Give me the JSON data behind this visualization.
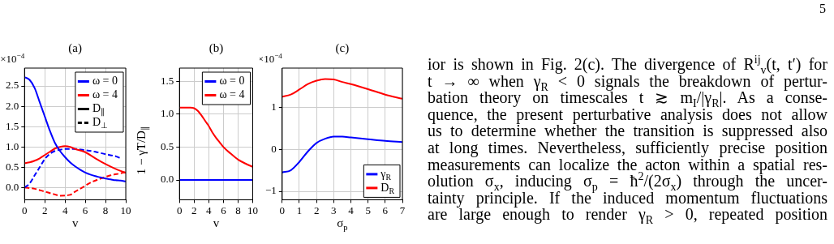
{
  "chart_data": [
    {
      "type": "line",
      "title": "(a)",
      "xlabel": "v",
      "xlim": [
        0,
        10
      ],
      "xticks": [
        0,
        2,
        4,
        6,
        8,
        10
      ],
      "ylim": [
        -0.3,
        2.94
      ],
      "yticks": [
        {
          "value": 0,
          "label": "0.0"
        },
        0.5,
        {
          "value": 1,
          "label": "1.0"
        },
        1.5,
        {
          "value": 2,
          "label": "2.0"
        },
        2.5
      ],
      "grid": true,
      "legend": "top right",
      "marker": "none",
      "annotations": [
        "×10$^{−4}$"
      ],
      "series": [
        {
          "name": "ω = 0",
          "color": "#0000ff",
          "line_style": "solid",
          "x": [
            0,
            0.5,
            1,
            1.5,
            2,
            2.5,
            3,
            3.5,
            4,
            4.5,
            5,
            5.5,
            6,
            6.5,
            7,
            7.5,
            8,
            8.5,
            9,
            9.5,
            10
          ],
          "values": [
            2.72,
            2.65,
            2.45,
            2.1,
            1.75,
            1.4,
            1.1,
            0.9,
            0.75,
            0.62,
            0.52,
            0.44,
            0.37,
            0.32,
            0.28,
            0.25,
            0.22,
            0.2,
            0.18,
            0.17,
            0.15
          ]
        },
        {
          "name": "ω = 4",
          "color": "#ff0000",
          "line_style": "solid",
          "x": [
            0,
            0.5,
            1,
            1.5,
            2,
            2.5,
            3,
            3.5,
            4,
            4.5,
            5,
            6,
            7,
            8,
            9,
            10
          ],
          "values": [
            0.6,
            0.62,
            0.66,
            0.72,
            0.8,
            0.88,
            0.96,
            1.0,
            1.02,
            1.0,
            0.95,
            0.87,
            0.72,
            0.58,
            0.46,
            0.36
          ]
        },
        {
          "color": "#0000ff",
          "line_style": "dashed",
          "x": [
            0,
            0.5,
            1,
            1.5,
            2,
            2.5,
            3,
            3.5,
            4,
            5,
            6,
            7,
            8,
            9,
            9.5
          ],
          "values": [
            0,
            0.1,
            0.3,
            0.5,
            0.7,
            0.83,
            0.9,
            0.93,
            0.95,
            0.95,
            0.92,
            0.88,
            0.82,
            0.77,
            0.72
          ]
        },
        {
          "color": "#ff0000",
          "line_style": "dashed",
          "x": [
            0,
            1,
            2,
            3,
            3.5,
            4.5,
            5,
            5.7,
            6.5,
            7.5,
            8.5,
            9.5,
            10
          ],
          "values": [
            0,
            -0.03,
            -0.1,
            -0.17,
            -0.2,
            -0.18,
            -0.1,
            0,
            0.12,
            0.22,
            0.3,
            0.35,
            0.38
          ]
        },
        {
          "name": "D$_{∥}$",
          "color": "#000000",
          "line_style": "solid"
        },
        {
          "name": "D$_{⊥}$",
          "color": "#000000",
          "line_style": "dashed"
        }
      ]
    },
    {
      "type": "line",
      "title": "(b)",
      "xlabel": "v",
      "ylabel": "1 − γ̃T/D$_{∥}$",
      "xlim": [
        0,
        10
      ],
      "xticks": [
        0,
        2,
        4,
        6,
        8,
        10
      ],
      "ylim": [
        -0.3,
        1.7
      ],
      "yticks": [
        {
          "value": 0,
          "label": "0.0"
        },
        0.5,
        {
          "value": 1,
          "label": "1.0"
        },
        1.5
      ],
      "grid": true,
      "legend": "top right",
      "marker": "none",
      "series": [
        {
          "name": "ω = 0",
          "color": "#0000ff",
          "line_style": "solid",
          "x": [
            0,
            10
          ],
          "values": [
            0,
            0
          ]
        },
        {
          "name": "ω = 4",
          "color": "#ff0000",
          "line_style": "solid",
          "x": [
            0,
            1,
            1.5,
            2,
            2.5,
            3,
            3.5,
            4,
            4.5,
            5,
            5.5,
            6,
            7,
            8,
            9,
            10
          ],
          "values": [
            1.1,
            1.1,
            1.1,
            1.09,
            1.05,
            0.98,
            0.9,
            0.82,
            0.72,
            0.64,
            0.57,
            0.5,
            0.4,
            0.31,
            0.25,
            0.2
          ]
        }
      ]
    },
    {
      "type": "line",
      "title": "(c)",
      "xlabel": "σ$_{p}$",
      "xlim": [
        0,
        7
      ],
      "xticks": [
        0,
        1,
        2,
        3,
        4,
        5,
        6,
        7
      ],
      "ylim": [
        -1.2,
        1.93
      ],
      "yticks": [
        -1,
        0,
        1
      ],
      "grid": true,
      "legend": "bottom right",
      "marker": "none",
      "annotations": [
        "×10$^{−4}$"
      ],
      "series": [
        {
          "name": "γ$_{R}$",
          "color": "#0000ff",
          "line_style": "solid",
          "x": [
            0,
            0.5,
            1,
            1.5,
            2,
            2.5,
            3,
            3.5,
            4,
            5,
            6,
            7
          ],
          "values": [
            -0.55,
            -0.5,
            -0.3,
            -0.05,
            0.15,
            0.25,
            0.3,
            0.3,
            0.28,
            0.24,
            0.2,
            0.17
          ]
        },
        {
          "name": "D$_{R}$",
          "color": "#ff0000",
          "line_style": "solid",
          "x": [
            0,
            0.5,
            1,
            1.5,
            2,
            2.5,
            3,
            3.5,
            4,
            5,
            6,
            7
          ],
          "values": [
            1.25,
            1.3,
            1.42,
            1.55,
            1.63,
            1.67,
            1.66,
            1.6,
            1.55,
            1.43,
            1.3,
            1.2
          ]
        }
      ]
    },
    {
      "type": "other",
      "title": "5",
      "annotations": [
        "ior is shown in Fig. 2(c). The divergence of R$^{ij}$$_{v}$(t, t′) for",
        "t → ∞ when γ$_{R}$ < 0 signals the breakdown of pertur-",
        "bation theory on timescales t ≳ m$_{I}$/|γ$_{R}$|. As a conse-",
        "quence, the present perturbative analysis does not allow",
        "us to determine whether the transition is suppressed also",
        "at long times. Nevertheless, sufficiently precise position",
        "measurements can localize the acton within a spatial res-",
        "olution σ$_{x}$, inducing σ$_{p}$ = ħ$^{2}$/(2σ$_{x}$) through the uncer-",
        "tainty principle. If the induced momentum fluctuations",
        "are large enough to render γ$_{R}$ > 0, repeated position"
      ]
    }
  ]
}
